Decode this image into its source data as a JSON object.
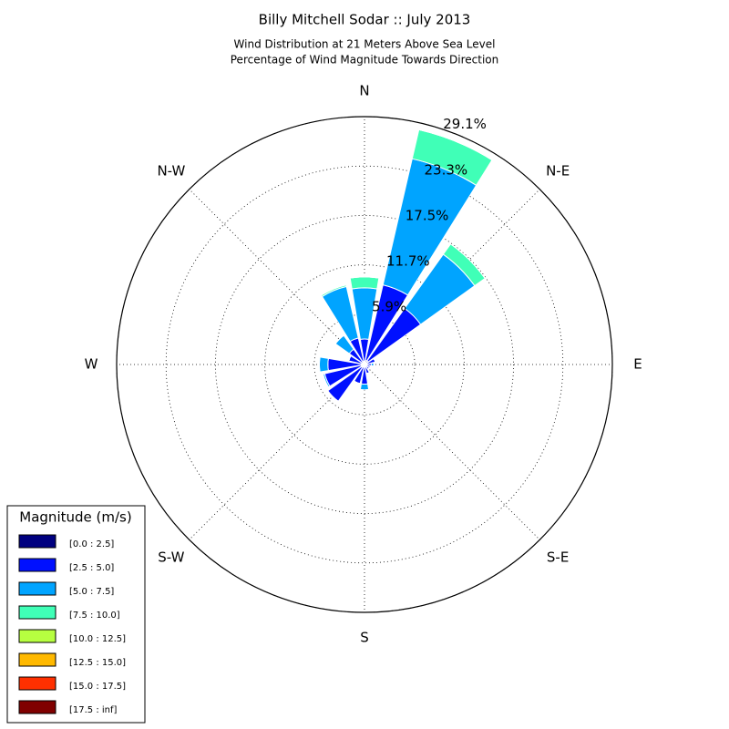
{
  "chart_data": {
    "type": "windrose",
    "title": "Billy Mitchell Sodar :: July 2013",
    "subtitle": "Wind Distribution at 21 Meters Above Sea Level",
    "subtitle2": "Percentage of Wind Magnitude Towards Direction",
    "categories": [
      "N",
      null,
      "N-E",
      null,
      "E",
      null,
      "S-E",
      null,
      "S",
      null,
      "S-W",
      null,
      "W",
      null,
      "N-W",
      null
    ],
    "rlim": [
      0,
      29.1
    ],
    "rticks": [
      {
        "value": 5.9,
        "label": "5.9%"
      },
      {
        "value": 11.7,
        "label": "11.7%"
      },
      {
        "value": 17.5,
        "label": "17.5%"
      },
      {
        "value": 23.3,
        "label": "23.3%"
      },
      {
        "value": 29.1,
        "label": "29.1%"
      }
    ],
    "legend_title": "Magnitude (m/s)",
    "series": [
      {
        "name": "[0.0 : 2.5]",
        "color": "#000080",
        "values": [
          0.4,
          0.5,
          0.5,
          0.3,
          0.2,
          0.2,
          0.2,
          0.2,
          0.3,
          0.3,
          0.4,
          0.4,
          0.4,
          0.3,
          0.3,
          0.4
        ]
      },
      {
        "name": "[2.5 : 5.0]",
        "color": "#0010ff",
        "values": [
          2.6,
          9.1,
          7.6,
          1.0,
          0.6,
          0.5,
          0.5,
          0.9,
          2.0,
          2.0,
          4.9,
          4.4,
          3.9,
          1.6,
          1.9,
          2.8
        ]
      },
      {
        "name": "[5.0 : 7.5]",
        "color": "#00a4ff",
        "values": [
          6.0,
          15.2,
          7.8,
          0,
          0.3,
          0,
          0,
          0,
          0.7,
          0,
          0.1,
          0.2,
          1.0,
          0,
          2.0,
          6.2
        ]
      },
      {
        "name": "[7.5 : 10.0]",
        "color": "#40ffb7",
        "values": [
          1.3,
          3.5,
          1.5,
          0,
          0,
          0,
          0,
          0,
          0,
          0,
          0,
          0,
          0.1,
          0,
          0,
          0.2
        ]
      },
      {
        "name": "[10.0 : 12.5]",
        "color": "#b7ff40",
        "values": [
          0,
          0,
          0,
          0,
          0,
          0,
          0,
          0,
          0,
          0,
          0,
          0,
          0,
          0,
          0,
          0
        ]
      },
      {
        "name": "[12.5 : 15.0]",
        "color": "#ffb900",
        "values": [
          0,
          0,
          0,
          0,
          0,
          0,
          0,
          0,
          0,
          0,
          0,
          0,
          0,
          0,
          0,
          0
        ]
      },
      {
        "name": "[15.0 : 17.5]",
        "color": "#ff3000",
        "values": [
          0,
          0,
          0,
          0,
          0,
          0,
          0,
          0,
          0,
          0,
          0,
          0,
          0,
          0,
          0,
          0
        ]
      },
      {
        "name": "[17.5 : inf]",
        "color": "#800000",
        "values": [
          0,
          0,
          0,
          0,
          0,
          0,
          0,
          0,
          0,
          0,
          0,
          0,
          0,
          0,
          0,
          0
        ]
      }
    ]
  }
}
